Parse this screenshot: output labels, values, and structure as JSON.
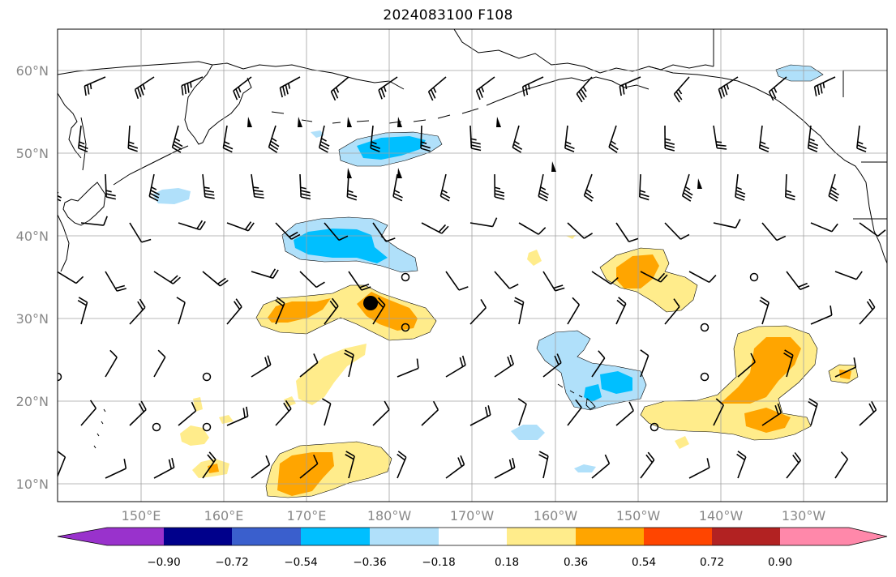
{
  "title": "2024083100 F108",
  "lat_labels": [
    "60°N",
    "50°N",
    "40°N",
    "30°N",
    "20°N",
    "10°N"
  ],
  "lon_labels": [
    "150°E",
    "160°E",
    "170°E",
    "180°W",
    "170°W",
    "160°W",
    "150°W",
    "140°W",
    "130°W"
  ],
  "colorbar": {
    "tick_labels": [
      "−0.90",
      "−0.72",
      "−0.54",
      "−0.36",
      "−0.18",
      "0.18",
      "0.36",
      "0.54",
      "0.72",
      "0.90"
    ],
    "colors": [
      "#9932cc",
      "#00008b",
      "#3a5fcd",
      "#00bfff",
      "#b0e0fa",
      "#ffffff",
      "#ffec8b",
      "#ffa500",
      "#ff4500",
      "#b22222",
      "#ff88aa"
    ]
  },
  "fill_colors": {
    "neg_light": "#b0e0fa",
    "neg_mid": "#00bfff",
    "pos_light": "#ffec8b",
    "pos_mid": "#ffa500"
  },
  "marker": "storm-center-dot"
}
